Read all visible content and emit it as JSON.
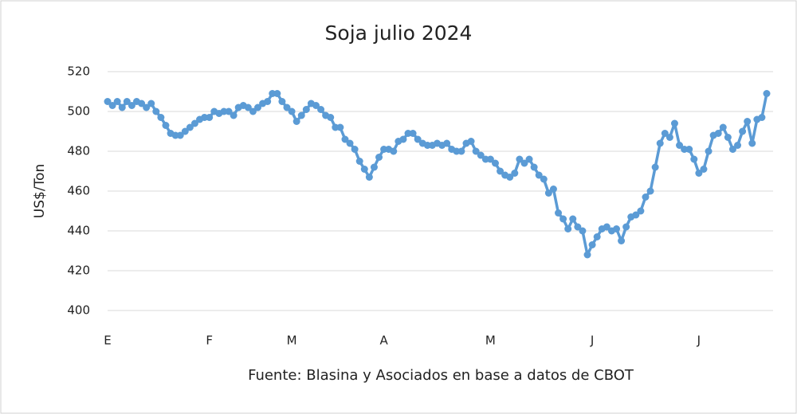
{
  "chart_data": {
    "type": "line",
    "title": "Soja julio 2024",
    "y_label": "US$/Ton",
    "source": "Fuente: Blasina y Asociados en base a datos de CBOT",
    "categories": [
      "E",
      null,
      null,
      null,
      null,
      null,
      null,
      null,
      null,
      null,
      null,
      null,
      null,
      null,
      null,
      null,
      null,
      null,
      null,
      null,
      null,
      "F",
      null,
      null,
      null,
      null,
      null,
      null,
      null,
      null,
      null,
      null,
      null,
      null,
      null,
      null,
      null,
      null,
      "M",
      null,
      null,
      null,
      null,
      null,
      null,
      null,
      null,
      null,
      null,
      null,
      null,
      null,
      null,
      null,
      null,
      null,
      null,
      "A",
      null,
      null,
      null,
      null,
      null,
      null,
      null,
      null,
      null,
      null,
      null,
      null,
      null,
      null,
      null,
      null,
      null,
      null,
      null,
      null,
      null,
      "M",
      null,
      null,
      null,
      null,
      null,
      null,
      null,
      null,
      null,
      null,
      null,
      null,
      null,
      null,
      null,
      null,
      null,
      null,
      null,
      null,
      "J",
      null,
      null,
      null,
      null,
      null,
      null,
      null,
      null,
      null,
      null,
      null,
      null,
      null,
      null,
      null,
      null,
      null,
      null,
      null,
      null,
      null,
      "J",
      null,
      null,
      null,
      null,
      null,
      null,
      null,
      null,
      null,
      null,
      null,
      null,
      null,
      null
    ],
    "series": [
      {
        "name": "Soja julio 2024",
        "color": "#5b9bd5",
        "values": [
          505,
          503,
          505,
          502,
          505,
          503,
          505,
          504,
          502,
          504,
          500,
          497,
          493,
          489,
          488,
          488,
          490,
          492,
          494,
          496,
          497,
          497,
          500,
          499,
          500,
          500,
          498,
          502,
          503,
          502,
          500,
          502,
          504,
          505,
          509,
          509,
          505,
          502,
          500,
          495,
          498,
          501,
          504,
          503,
          501,
          498,
          497,
          492,
          492,
          486,
          484,
          481,
          475,
          471,
          467,
          472,
          477,
          481,
          481,
          480,
          485,
          486,
          489,
          489,
          486,
          484,
          483,
          483,
          484,
          483,
          484,
          481,
          480,
          480,
          484,
          485,
          480,
          478,
          476,
          476,
          474,
          470,
          468,
          467,
          469,
          476,
          474,
          476,
          472,
          468,
          466,
          459,
          461,
          449,
          446,
          441,
          446,
          442,
          440,
          428,
          433,
          437,
          441,
          442,
          440,
          441,
          435,
          442,
          447,
          448,
          450,
          457,
          460,
          472,
          484,
          489,
          487,
          494,
          483,
          481,
          481,
          476,
          469,
          471,
          480,
          488,
          489,
          492,
          487,
          481,
          483,
          490,
          495,
          484,
          496,
          497,
          509
        ]
      }
    ],
    "ylim": [
      400,
      520
    ],
    "yticks": [
      400,
      420,
      440,
      460,
      480,
      500,
      520
    ],
    "grid": true
  }
}
